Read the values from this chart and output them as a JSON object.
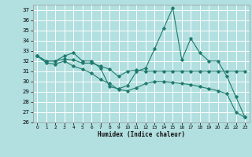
{
  "title": "",
  "xlabel": "Humidex (Indice chaleur)",
  "ylabel": "",
  "xlim": [
    -0.5,
    23.5
  ],
  "ylim": [
    26,
    37.5
  ],
  "yticks": [
    26,
    27,
    28,
    29,
    30,
    31,
    32,
    33,
    34,
    35,
    36,
    37
  ],
  "xticks": [
    0,
    1,
    2,
    3,
    4,
    5,
    6,
    7,
    8,
    9,
    10,
    11,
    12,
    13,
    14,
    15,
    16,
    17,
    18,
    19,
    20,
    21,
    22,
    23
  ],
  "background_color": "#b2dfdf",
  "grid_color": "#ffffff",
  "line_color": "#1e7b6e",
  "series": [
    [
      32.5,
      32.0,
      32.0,
      32.5,
      32.8,
      32.0,
      32.0,
      31.3,
      29.5,
      29.3,
      29.6,
      31.0,
      31.3,
      33.2,
      35.2,
      37.2,
      32.1,
      34.2,
      32.8,
      32.0,
      32.0,
      30.5,
      28.5,
      26.5
    ],
    [
      32.5,
      32.0,
      32.0,
      32.2,
      32.1,
      31.8,
      31.8,
      31.5,
      31.2,
      30.5,
      31.0,
      31.1,
      31.0,
      31.0,
      31.0,
      31.0,
      31.0,
      31.0,
      31.0,
      31.0,
      31.0,
      31.0,
      31.0,
      31.0
    ],
    [
      32.5,
      31.8,
      31.7,
      32.0,
      31.5,
      31.2,
      30.8,
      30.2,
      29.8,
      29.2,
      29.1,
      29.4,
      29.8,
      30.0,
      30.0,
      29.9,
      29.8,
      29.7,
      29.5,
      29.3,
      29.1,
      28.8,
      27.0,
      26.5
    ]
  ]
}
